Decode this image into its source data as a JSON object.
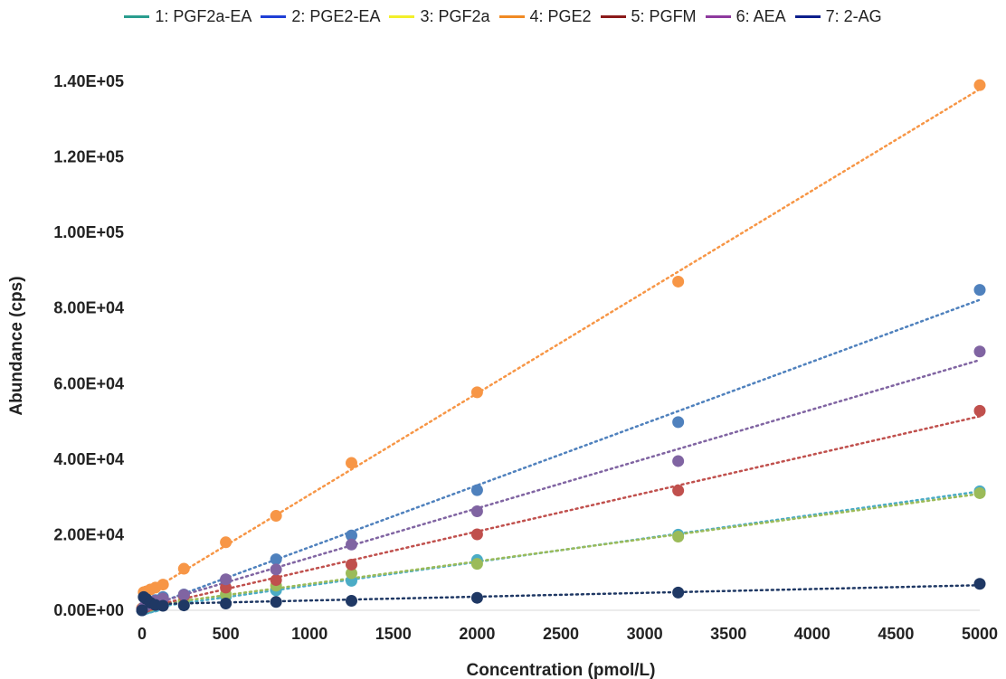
{
  "chart_data": {
    "type": "scatter",
    "title": "",
    "xlabel": "Concentration (pmol/L)",
    "ylabel": "Abundance (cps)",
    "xlim": [
      0,
      5000
    ],
    "ylim": [
      0,
      140000
    ],
    "x_ticks": [
      "0",
      "500",
      "1000",
      "1500",
      "2000",
      "2500",
      "3000",
      "3500",
      "4000",
      "4500",
      "5000"
    ],
    "y_ticks": [
      "0.00E+00",
      "2.00E+04",
      "4.00E+04",
      "6.00E+04",
      "8.00E+04",
      "1.00E+05",
      "1.20E+05",
      "1.40E+05"
    ],
    "x_tick_values": [
      0,
      500,
      1000,
      1500,
      2000,
      2500,
      3000,
      3500,
      4000,
      4500,
      5000
    ],
    "y_tick_values": [
      0,
      20000,
      40000,
      60000,
      80000,
      100000,
      120000,
      140000
    ],
    "grid": false,
    "legend_position": "top",
    "trendline": "linear, dotted",
    "x": [
      0,
      10,
      25,
      50,
      80,
      125,
      250,
      500,
      800,
      1250,
      2000,
      3200,
      5000
    ],
    "series": [
      {
        "name": "1: PGF2a-EA",
        "legend_color": "#2a9d8f",
        "marker_color": "#4bacc6",
        "values": [
          0,
          250,
          400,
          700,
          1000,
          1300,
          2200,
          3600,
          5300,
          7800,
          13300,
          20000,
          31500
        ]
      },
      {
        "name": "2: PGE2-EA",
        "legend_color": "#1f3fd6",
        "marker_color": "#4f81bd",
        "values": [
          0,
          600,
          1200,
          2000,
          2700,
          3500,
          4200,
          8000,
          13500,
          19800,
          31800,
          49800,
          84800
        ]
      },
      {
        "name": "3: PGF2a",
        "legend_color": "#f2ef2a",
        "marker_color": "#9bbb59",
        "values": [
          500,
          700,
          900,
          1200,
          1500,
          1800,
          2600,
          4200,
          6500,
          9800,
          12300,
          19500,
          31000
        ]
      },
      {
        "name": "4: PGE2",
        "legend_color": "#f08a24",
        "marker_color": "#f79646",
        "values": [
          500,
          4800,
          5000,
          5500,
          6000,
          6800,
          11000,
          18000,
          25000,
          39000,
          57700,
          87000,
          139000
        ]
      },
      {
        "name": "5: PGFM",
        "legend_color": "#8b1a1a",
        "marker_color": "#c0504d",
        "values": [
          300,
          600,
          900,
          1400,
          1900,
          2400,
          3800,
          6000,
          8000,
          12100,
          20100,
          31700,
          52800
        ]
      },
      {
        "name": "6: AEA",
        "legend_color": "#8e3a9e",
        "marker_color": "#8064a2",
        "values": [
          200,
          800,
          1300,
          1900,
          2500,
          3100,
          4100,
          8200,
          10800,
          17400,
          26200,
          39500,
          68500
        ]
      },
      {
        "name": "7: 2-AG",
        "legend_color": "#0d1f8c",
        "marker_color": "#1f3864",
        "values": [
          0,
          3500,
          3000,
          2000,
          1400,
          1200,
          1300,
          1800,
          2200,
          2500,
          3300,
          4700,
          7000
        ]
      }
    ]
  }
}
